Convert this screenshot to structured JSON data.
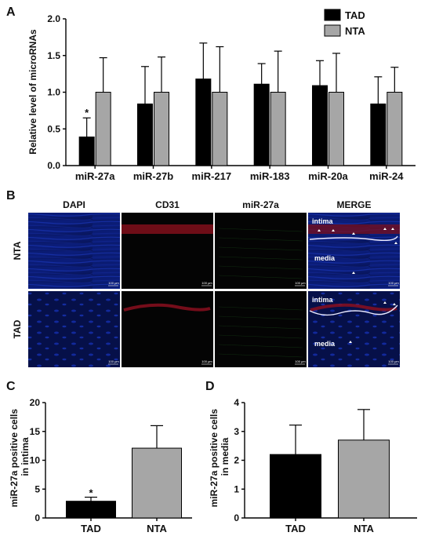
{
  "panels": {
    "a": "A",
    "b": "B",
    "c": "C",
    "d": "D"
  },
  "chart_data": [
    {
      "type": "bar",
      "ylabel": "Relative level of microRNAs",
      "categories": [
        "miR-27a",
        "miR-27b",
        "miR-217",
        "miR-183",
        "miR-20a",
        "miR-24"
      ],
      "ylim": [
        0,
        2.0
      ],
      "yticks": [
        "0.0",
        "0.5",
        "1.0",
        "1.5",
        "2.0"
      ],
      "legend": "top-right",
      "series": [
        {
          "name": "TAD",
          "color": "#000000",
          "values": [
            0.39,
            0.84,
            1.18,
            1.11,
            1.09,
            0.84
          ],
          "errors": [
            0.26,
            0.51,
            0.49,
            0.28,
            0.34,
            0.37
          ]
        },
        {
          "name": "NTA",
          "color": "#a6a6a6",
          "values": [
            1.0,
            1.0,
            1.0,
            1.0,
            1.0,
            1.0
          ],
          "errors": [
            0.47,
            0.48,
            0.62,
            0.56,
            0.53,
            0.34
          ]
        }
      ],
      "annotations": [
        {
          "category": "miR-27a",
          "series": "TAD",
          "text": "*"
        }
      ]
    },
    {
      "type": "bar",
      "ylabel": "miR-27a positive cells in intima",
      "categories": [
        "TAD",
        "NTA"
      ],
      "ylim": [
        0,
        20
      ],
      "yticks": [
        "0",
        "5",
        "10",
        "15",
        "20"
      ],
      "values": [
        2.9,
        12.1
      ],
      "errors": [
        0.7,
        3.9
      ],
      "colors": [
        "#000000",
        "#a6a6a6"
      ],
      "annotations": [
        {
          "category": "TAD",
          "text": "*"
        }
      ]
    },
    {
      "type": "bar",
      "ylabel": "miR-27a positive cells in media",
      "categories": [
        "TAD",
        "NTA"
      ],
      "ylim": [
        0,
        4
      ],
      "yticks": [
        "0",
        "1",
        "2",
        "3",
        "4"
      ],
      "values": [
        2.2,
        2.7
      ],
      "errors": [
        1.02,
        1.06
      ],
      "colors": [
        "#000000",
        "#a6a6a6"
      ]
    }
  ],
  "micrograph": {
    "columns": [
      "DAPI",
      "CD31",
      "miR-27a",
      "MERGE"
    ],
    "rows": [
      "NTA",
      "TAD"
    ],
    "overlay": {
      "intima": "intima",
      "media": "media"
    },
    "scale_bar": "100 μm"
  }
}
